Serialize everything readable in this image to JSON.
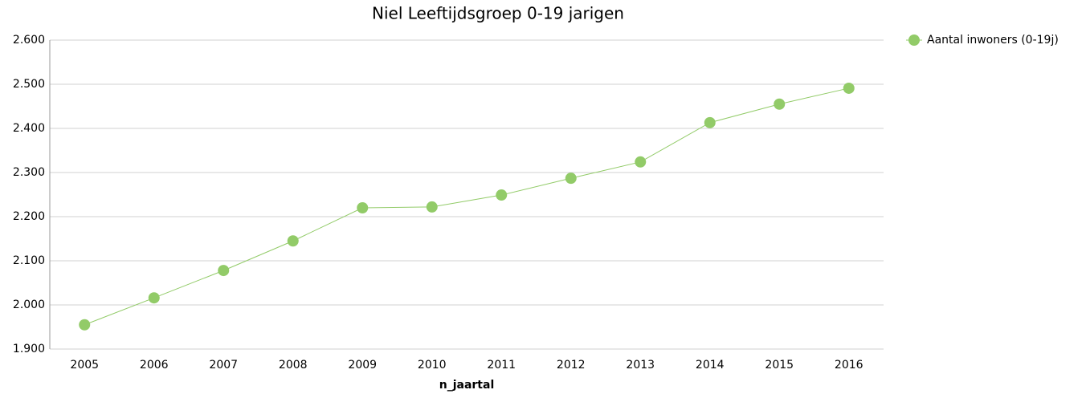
{
  "chart_data": {
    "type": "line",
    "title": "Niel  Leeftijdsgroep 0-19 jarigen",
    "x_label": "n_jaartal",
    "categories": [
      "2005",
      "2006",
      "2007",
      "2008",
      "2009",
      "2010",
      "2011",
      "2012",
      "2013",
      "2014",
      "2015",
      "2016"
    ],
    "series": [
      {
        "name": "Aantal inwoners (0-19j)",
        "color": "#92cb68",
        "values": [
          1955,
          2016,
          2078,
          2145,
          2220,
          2222,
          2249,
          2287,
          2324,
          2413,
          2455,
          2491
        ]
      }
    ],
    "ylim": [
      1900,
      2600
    ],
    "yticks": [
      {
        "value": 1900,
        "label": "1.900"
      },
      {
        "value": 2000,
        "label": "2.000"
      },
      {
        "value": 2100,
        "label": "2.100"
      },
      {
        "value": 2200,
        "label": "2.200"
      },
      {
        "value": 2300,
        "label": "2.300"
      },
      {
        "value": 2400,
        "label": "2.400"
      },
      {
        "value": 2500,
        "label": "2.500"
      },
      {
        "value": 2600,
        "label": "2.600"
      }
    ],
    "grid": true,
    "legend": "right"
  }
}
